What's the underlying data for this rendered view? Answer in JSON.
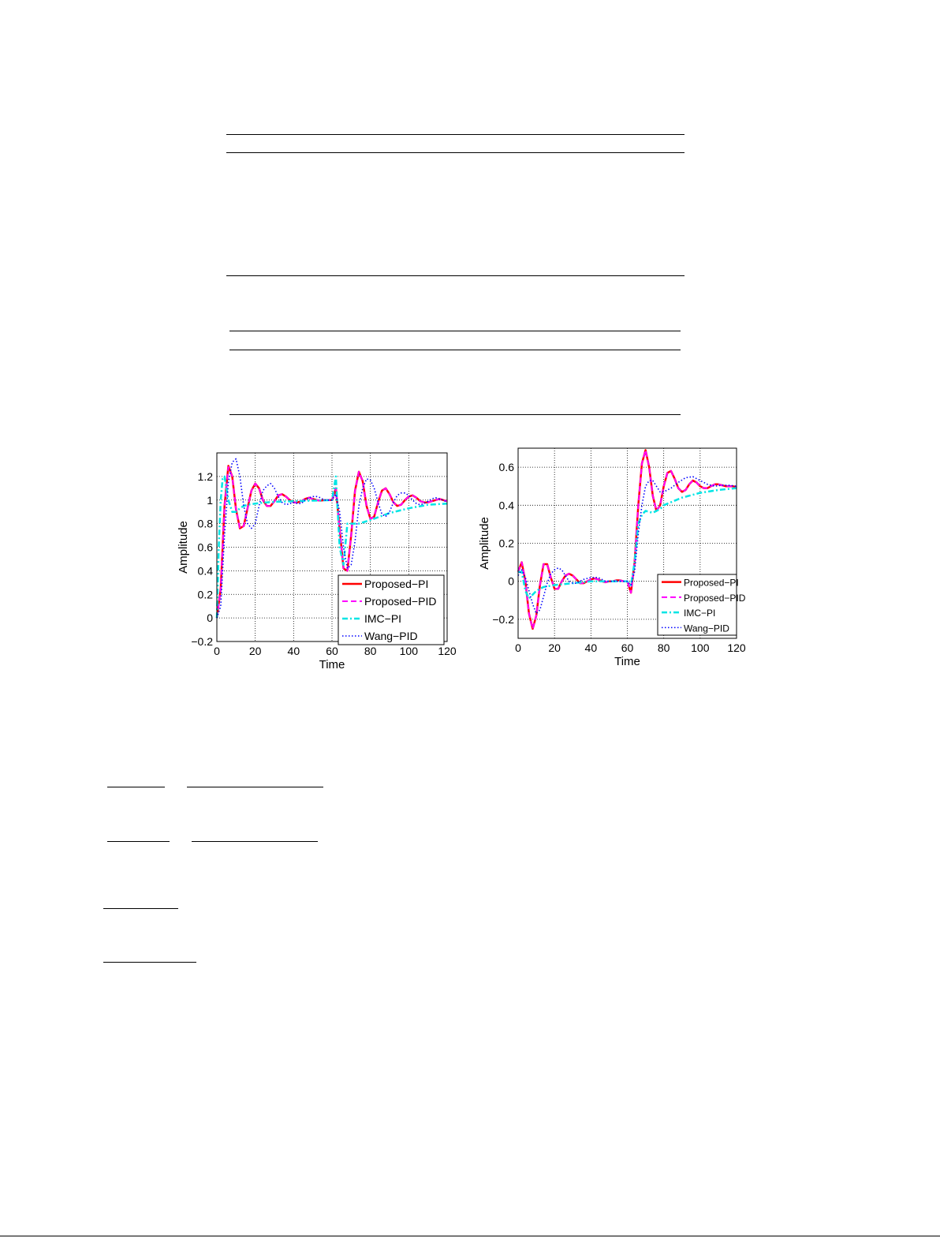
{
  "chart_data": [
    {
      "type": "line",
      "xlabel": "Time",
      "ylabel": "Amplitude",
      "xlim": [
        0,
        120
      ],
      "ylim": [
        -0.2,
        1.4
      ],
      "xticks": [
        "0",
        "20",
        "40",
        "60",
        "80",
        "100",
        "120"
      ],
      "yticks": [
        "−0.2",
        "0",
        "0.2",
        "0.4",
        "0.6",
        "0.8",
        "1",
        "1.2"
      ],
      "grid": true,
      "legend_position": "bottom-right",
      "series": [
        {
          "name": "Proposed−PI",
          "color": "#ff0000",
          "style": "solid",
          "x": [
            0,
            2,
            4,
            6,
            8,
            10,
            12,
            14,
            16,
            18,
            20,
            22,
            24,
            26,
            28,
            30,
            32,
            34,
            36,
            38,
            40,
            42,
            44,
            46,
            48,
            50,
            52,
            54,
            56,
            58,
            60,
            62,
            64,
            66,
            68,
            70,
            72,
            74,
            76,
            78,
            80,
            82,
            84,
            86,
            88,
            90,
            92,
            94,
            96,
            98,
            100,
            102,
            104,
            106,
            108,
            110,
            112,
            114,
            116,
            118,
            120
          ],
          "y": [
            0,
            0.25,
            0.95,
            1.29,
            1.2,
            0.92,
            0.76,
            0.78,
            0.93,
            1.08,
            1.14,
            1.1,
            1.0,
            0.95,
            0.95,
            0.99,
            1.04,
            1.05,
            1.03,
            1.0,
            0.98,
            0.98,
            0.99,
            1.01,
            1.02,
            1.01,
            1.0,
            0.995,
            1.0,
            1.0,
            1.0,
            1.1,
            0.75,
            0.42,
            0.4,
            0.7,
            1.08,
            1.24,
            1.16,
            0.95,
            0.84,
            0.86,
            0.98,
            1.08,
            1.1,
            1.05,
            0.98,
            0.95,
            0.96,
            1.0,
            1.03,
            1.04,
            1.02,
            0.99,
            0.98,
            0.98,
            0.99,
            1.0,
            1.01,
            1.0,
            0.99
          ]
        },
        {
          "name": "Proposed−PID",
          "color": "#ff00ff",
          "style": "dashed",
          "x": [
            0,
            2,
            4,
            6,
            8,
            10,
            12,
            14,
            16,
            18,
            20,
            22,
            24,
            26,
            28,
            30,
            32,
            34,
            36,
            38,
            40,
            42,
            44,
            46,
            48,
            50,
            52,
            54,
            56,
            58,
            60,
            62,
            64,
            66,
            68,
            70,
            72,
            74,
            76,
            78,
            80,
            82,
            84,
            86,
            88,
            90,
            92,
            94,
            96,
            98,
            100,
            102,
            104,
            106,
            108,
            110,
            112,
            114,
            116,
            118,
            120
          ],
          "y": [
            0,
            0.24,
            0.94,
            1.28,
            1.2,
            0.92,
            0.76,
            0.78,
            0.93,
            1.08,
            1.14,
            1.1,
            1.0,
            0.95,
            0.95,
            0.99,
            1.04,
            1.05,
            1.03,
            1.0,
            0.98,
            0.98,
            0.99,
            1.01,
            1.02,
            1.01,
            1.0,
            0.995,
            1.0,
            1.0,
            1.0,
            1.1,
            0.75,
            0.42,
            0.4,
            0.7,
            1.08,
            1.24,
            1.16,
            0.95,
            0.84,
            0.86,
            0.98,
            1.08,
            1.1,
            1.05,
            0.98,
            0.95,
            0.96,
            1.0,
            1.03,
            1.04,
            1.02,
            0.99,
            0.98,
            0.98,
            0.99,
            1.0,
            1.01,
            1.0,
            0.99
          ]
        },
        {
          "name": "IMC−PI",
          "color": "#00e5e5",
          "style": "dashdot",
          "x": [
            0,
            1,
            2,
            3,
            4,
            6,
            8,
            10,
            12,
            14,
            16,
            20,
            26,
            30,
            40,
            50,
            60,
            62,
            64,
            66,
            68,
            70,
            74,
            80,
            90,
            100,
            110,
            120
          ],
          "y": [
            0,
            0.6,
            1.0,
            1.18,
            1.2,
            1.0,
            0.9,
            0.9,
            0.93,
            0.95,
            0.96,
            0.97,
            0.98,
            0.985,
            0.99,
            0.995,
            1.0,
            1.2,
            0.6,
            0.45,
            0.8,
            0.8,
            0.8,
            0.83,
            0.89,
            0.93,
            0.96,
            0.97
          ]
        },
        {
          "name": "Wang−PID",
          "color": "#0000ff",
          "style": "dotted",
          "x": [
            0,
            2,
            4,
            6,
            8,
            10,
            12,
            14,
            16,
            18,
            20,
            22,
            24,
            26,
            28,
            30,
            32,
            34,
            36,
            38,
            40,
            42,
            44,
            46,
            48,
            50,
            52,
            54,
            56,
            58,
            60,
            62,
            64,
            66,
            68,
            70,
            72,
            74,
            76,
            78,
            80,
            82,
            84,
            86,
            88,
            90,
            92,
            94,
            96,
            98,
            100,
            102,
            104,
            106,
            108,
            110,
            112,
            114,
            116,
            118,
            120
          ],
          "y": [
            0,
            0.1,
            0.7,
            1.15,
            1.32,
            1.35,
            1.2,
            0.95,
            0.8,
            0.76,
            0.8,
            0.95,
            1.08,
            1.12,
            1.14,
            1.1,
            1.03,
            0.98,
            0.96,
            0.97,
            0.98,
            0.97,
            0.97,
            1.0,
            1.02,
            1.03,
            1.03,
            1.02,
            1.0,
            1.0,
            1.0,
            1.05,
            0.9,
            0.6,
            0.42,
            0.45,
            0.65,
            0.95,
            1.1,
            1.18,
            1.17,
            1.1,
            0.98,
            0.88,
            0.86,
            0.9,
            0.98,
            1.04,
            1.06,
            1.06,
            1.04,
            1.0,
            0.97,
            0.96,
            0.97,
            0.99,
            1.01,
            1.02,
            1.01,
            1.0,
            0.98
          ]
        }
      ]
    },
    {
      "type": "line",
      "xlabel": "Time",
      "ylabel": "Amplitude",
      "xlim": [
        0,
        120
      ],
      "ylim": [
        -0.3,
        0.7
      ],
      "xticks": [
        "0",
        "20",
        "40",
        "60",
        "80",
        "100",
        "120"
      ],
      "yticks": [
        "−0.2",
        "0",
        "0.2",
        "0.4",
        "0.6"
      ],
      "grid": true,
      "legend_position": "bottom-right",
      "series": [
        {
          "name": "Proposed−PI",
          "color": "#ff0000",
          "style": "solid",
          "x": [
            0,
            2,
            4,
            6,
            8,
            10,
            12,
            14,
            16,
            18,
            20,
            22,
            24,
            26,
            28,
            30,
            32,
            34,
            36,
            38,
            40,
            42,
            44,
            46,
            48,
            50,
            52,
            54,
            56,
            58,
            60,
            62,
            64,
            66,
            68,
            70,
            72,
            74,
            76,
            78,
            80,
            82,
            84,
            86,
            88,
            90,
            92,
            94,
            96,
            98,
            100,
            102,
            104,
            106,
            108,
            110,
            112,
            114,
            116,
            118,
            120
          ],
          "y": [
            0.05,
            0.1,
            0.0,
            -0.17,
            -0.25,
            -0.18,
            -0.02,
            0.09,
            0.09,
            0.02,
            -0.04,
            -0.04,
            0.0,
            0.03,
            0.04,
            0.03,
            0.01,
            -0.01,
            -0.01,
            0.0,
            0.01,
            0.015,
            0.01,
            0.0,
            -0.005,
            0.0,
            0.0,
            0.005,
            0.005,
            0.0,
            0.0,
            -0.06,
            0.1,
            0.4,
            0.62,
            0.69,
            0.6,
            0.45,
            0.37,
            0.4,
            0.5,
            0.57,
            0.58,
            0.54,
            0.49,
            0.47,
            0.48,
            0.51,
            0.53,
            0.52,
            0.5,
            0.49,
            0.49,
            0.5,
            0.51,
            0.51,
            0.505,
            0.5,
            0.5,
            0.5,
            0.495
          ]
        },
        {
          "name": "Proposed−PID",
          "color": "#ff00ff",
          "style": "dashed",
          "x": [
            0,
            2,
            4,
            6,
            8,
            10,
            12,
            14,
            16,
            18,
            20,
            22,
            24,
            26,
            28,
            30,
            32,
            34,
            36,
            38,
            40,
            42,
            44,
            46,
            48,
            50,
            52,
            54,
            56,
            58,
            60,
            62,
            64,
            66,
            68,
            70,
            72,
            74,
            76,
            78,
            80,
            82,
            84,
            86,
            88,
            90,
            92,
            94,
            96,
            98,
            100,
            102,
            104,
            106,
            108,
            110,
            112,
            114,
            116,
            118,
            120
          ],
          "y": [
            0.05,
            0.1,
            0.0,
            -0.17,
            -0.25,
            -0.18,
            -0.02,
            0.09,
            0.09,
            0.02,
            -0.04,
            -0.04,
            0.0,
            0.03,
            0.04,
            0.03,
            0.01,
            -0.01,
            -0.01,
            0.0,
            0.01,
            0.015,
            0.01,
            0.0,
            -0.005,
            0.0,
            0.0,
            0.005,
            0.005,
            0.0,
            0.0,
            -0.06,
            0.1,
            0.4,
            0.62,
            0.69,
            0.6,
            0.45,
            0.37,
            0.4,
            0.5,
            0.57,
            0.58,
            0.54,
            0.49,
            0.47,
            0.48,
            0.51,
            0.53,
            0.52,
            0.5,
            0.49,
            0.49,
            0.5,
            0.51,
            0.51,
            0.505,
            0.5,
            0.5,
            0.5,
            0.495
          ]
        },
        {
          "name": "IMC−PI",
          "color": "#00e5e5",
          "style": "dashdot",
          "x": [
            0,
            2,
            4,
            6,
            8,
            10,
            14,
            20,
            30,
            40,
            50,
            60,
            62,
            64,
            66,
            68,
            70,
            74,
            78,
            80,
            90,
            100,
            110,
            120
          ],
          "y": [
            0.05,
            0.05,
            -0.05,
            -0.09,
            -0.07,
            -0.05,
            -0.03,
            -0.02,
            -0.01,
            0.0,
            0.0,
            0.0,
            -0.02,
            0.1,
            0.3,
            0.35,
            0.37,
            0.36,
            0.38,
            0.4,
            0.44,
            0.465,
            0.48,
            0.49
          ]
        },
        {
          "name": "Wang−PID",
          "color": "#0000ff",
          "style": "dotted",
          "x": [
            0,
            2,
            4,
            6,
            8,
            10,
            12,
            14,
            16,
            18,
            20,
            22,
            24,
            26,
            28,
            30,
            32,
            34,
            36,
            38,
            40,
            42,
            44,
            46,
            48,
            50,
            54,
            60,
            62,
            64,
            66,
            68,
            70,
            72,
            74,
            76,
            78,
            80,
            84,
            88,
            92,
            96,
            100,
            104,
            108,
            112,
            116,
            120
          ],
          "y": [
            0.03,
            0.06,
            0.02,
            -0.05,
            -0.12,
            -0.17,
            -0.15,
            -0.08,
            -0.01,
            0.04,
            0.06,
            0.07,
            0.06,
            0.03,
            0.0,
            -0.01,
            -0.01,
            0.0,
            0.01,
            0.015,
            0.02,
            0.02,
            0.02,
            0.01,
            0.0,
            0.0,
            0.0,
            0.0,
            -0.02,
            0.05,
            0.25,
            0.4,
            0.5,
            0.53,
            0.53,
            0.5,
            0.47,
            0.47,
            0.49,
            0.52,
            0.545,
            0.55,
            0.53,
            0.51,
            0.5,
            0.505,
            0.505,
            0.5
          ]
        }
      ]
    }
  ]
}
